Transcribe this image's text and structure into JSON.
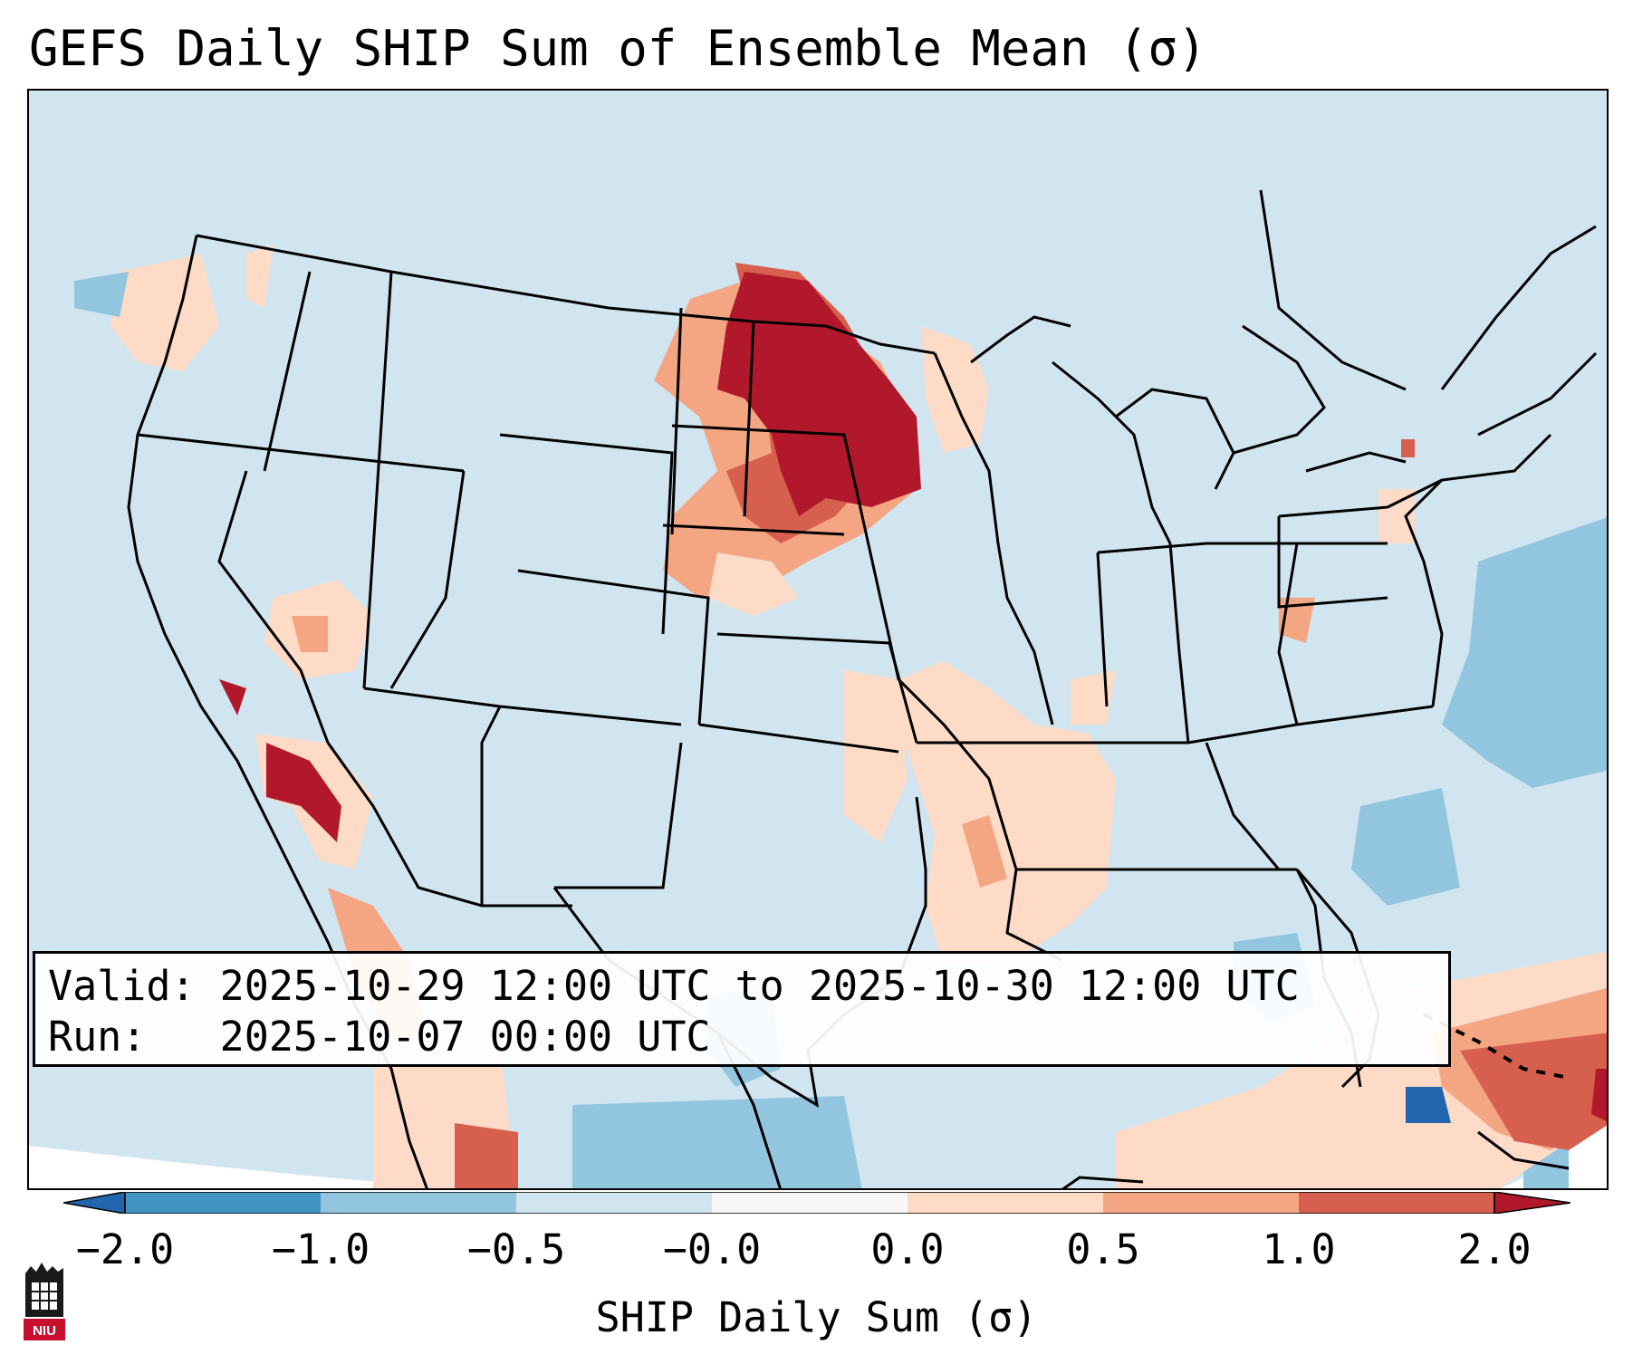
{
  "title": "GEFS Daily SHIP Sum of Ensemble Mean (σ)",
  "info": {
    "valid_label": "Valid:",
    "valid_value": "2025-10-29 12:00 UTC to 2025-10-30 12:00 UTC",
    "run_label": "Run:",
    "run_value": "2025-10-07 00:00 UTC"
  },
  "colorbar": {
    "label": "SHIP Daily Sum (σ)",
    "ticks": [
      "−2.0",
      "−1.0",
      "−0.5",
      "−0.0",
      "0.0",
      "0.5",
      "1.0",
      "2.0"
    ],
    "bins": [
      {
        "range": "< -2.0",
        "color": "#2166ac"
      },
      {
        "range": "-2.0 to -1.0",
        "color": "#4393c3"
      },
      {
        "range": "-1.0 to -0.5",
        "color": "#92c5de"
      },
      {
        "range": "-0.5 to -0.0",
        "color": "#d1e5f0"
      },
      {
        "range": "-0.0 to 0.0",
        "color": "#f7f7f7"
      },
      {
        "range": "0.0 to 0.5",
        "color": "#fddbc7"
      },
      {
        "range": "0.5 to 1.0",
        "color": "#f4a582"
      },
      {
        "range": "1.0 to 2.0",
        "color": "#d6604d"
      },
      {
        "range": "> 2.0",
        "color": "#b2182b"
      }
    ]
  },
  "logo": {
    "text": "NIU"
  }
}
